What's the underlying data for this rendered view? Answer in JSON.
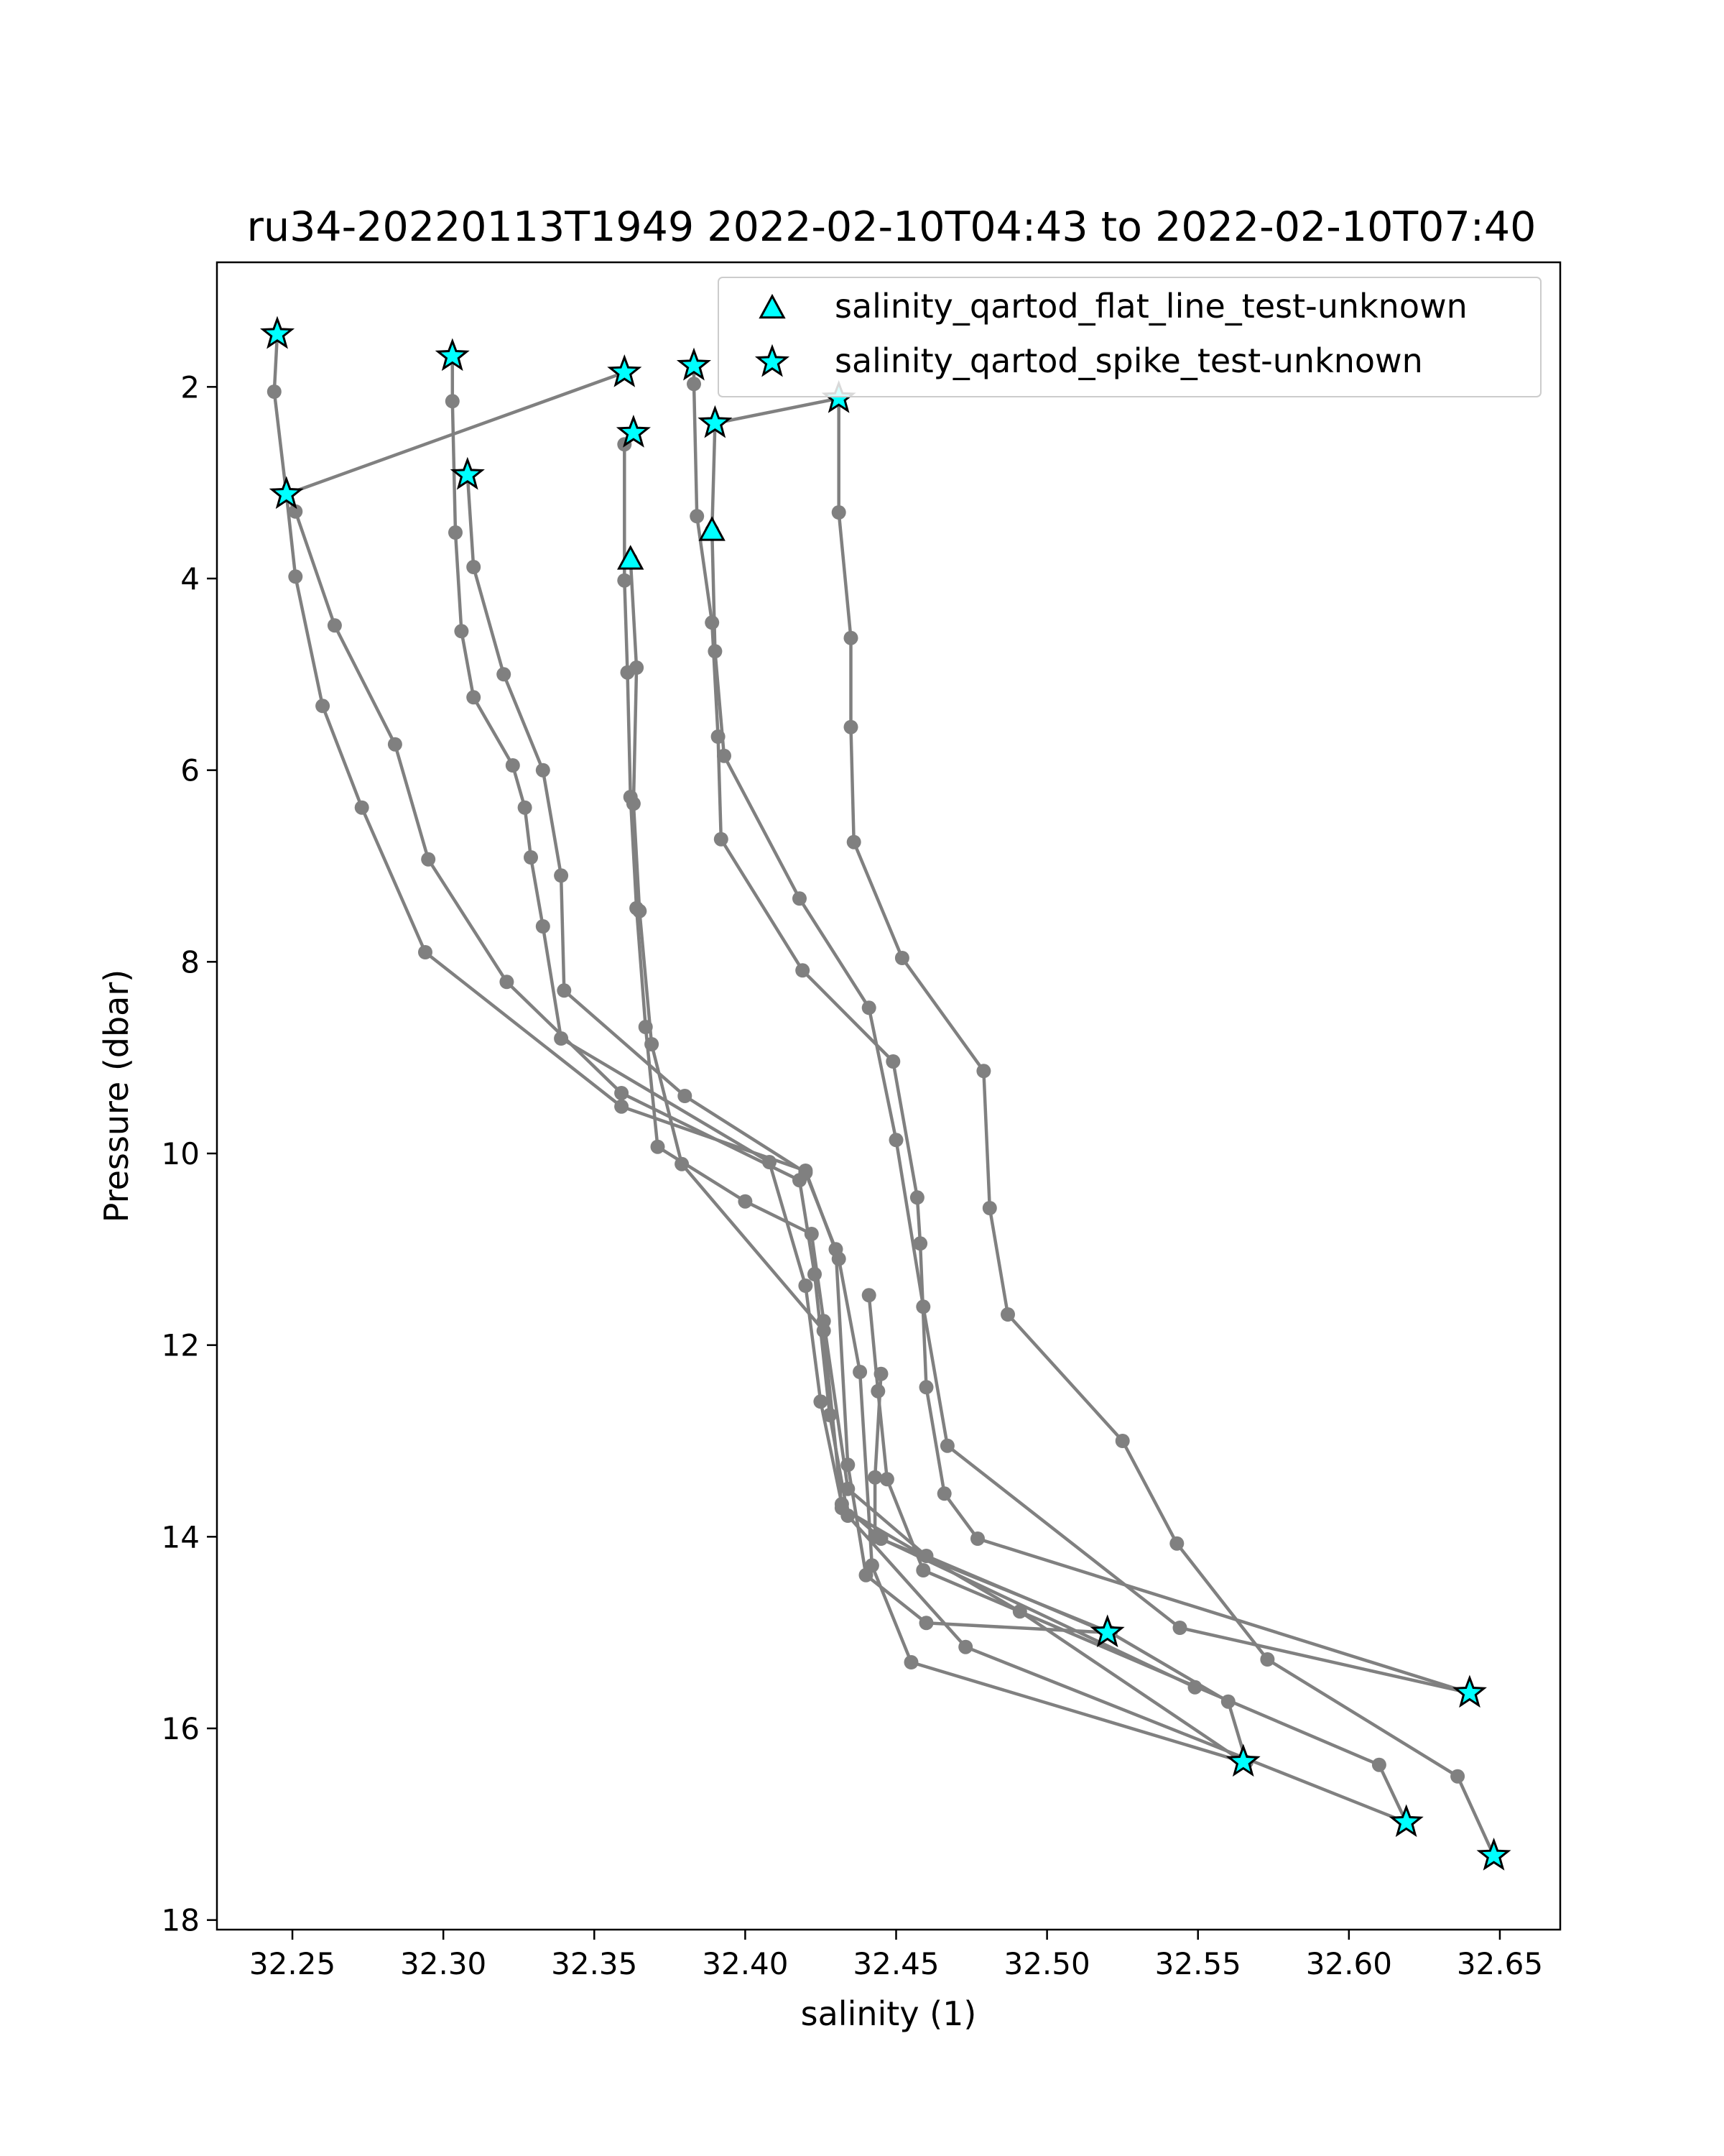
{
  "chart_data": {
    "type": "scatter",
    "title": "ru34-20220113T1949 2022-02-10T04:43 to 2022-02-10T07:40",
    "xlabel": "salinity (1)",
    "ylabel": "Pressure (dbar)",
    "xlim": [
      32.225,
      32.67
    ],
    "ylim": [
      18.1,
      0.7
    ],
    "y_inverted": true,
    "grid": false,
    "legend_position": "top-right",
    "x_ticks": [
      {
        "value": 32.25,
        "label": "32.25"
      },
      {
        "value": 32.3,
        "label": "32.30"
      },
      {
        "value": 32.35,
        "label": "32.35"
      },
      {
        "value": 32.4,
        "label": "32.40"
      },
      {
        "value": 32.45,
        "label": "32.45"
      },
      {
        "value": 32.5,
        "label": "32.50"
      },
      {
        "value": 32.55,
        "label": "32.55"
      },
      {
        "value": 32.6,
        "label": "32.60"
      },
      {
        "value": 32.65,
        "label": "32.65"
      }
    ],
    "y_ticks": [
      {
        "value": 2,
        "label": "2"
      },
      {
        "value": 4,
        "label": "4"
      },
      {
        "value": 6,
        "label": "6"
      },
      {
        "value": 8,
        "label": "8"
      },
      {
        "value": 10,
        "label": "10"
      },
      {
        "value": 12,
        "label": "12"
      },
      {
        "value": 14,
        "label": "14"
      },
      {
        "value": 16,
        "label": "16"
      },
      {
        "value": 18,
        "label": "18"
      }
    ],
    "profile_color": "#808080",
    "marker_color": "#00ffff",
    "profiles": [
      {
        "points": [
          [
            32.245,
            1.45
          ],
          [
            32.244,
            2.05
          ],
          [
            32.248,
            3.12
          ],
          [
            32.251,
            3.98
          ],
          [
            32.26,
            5.33
          ],
          [
            32.273,
            6.39
          ],
          [
            32.294,
            7.9
          ],
          [
            32.359,
            9.51
          ],
          [
            32.42,
            10.18
          ],
          [
            32.431,
            11.1
          ],
          [
            32.438,
            12.28
          ],
          [
            32.442,
            14.3
          ],
          [
            32.455,
            15.31
          ],
          [
            32.565,
            16.35
          ]
        ]
      },
      {
        "points": [
          [
            32.303,
            1.68
          ],
          [
            32.303,
            2.15
          ],
          [
            32.304,
            3.52
          ],
          [
            32.306,
            4.55
          ],
          [
            32.31,
            5.24
          ],
          [
            32.323,
            5.95
          ],
          [
            32.327,
            6.39
          ],
          [
            32.329,
            6.91
          ],
          [
            32.333,
            7.63
          ],
          [
            32.339,
            8.8
          ],
          [
            32.408,
            10.09
          ],
          [
            32.42,
            11.38
          ],
          [
            32.425,
            12.59
          ],
          [
            32.432,
            13.66
          ],
          [
            32.445,
            14.02
          ],
          [
            32.549,
            15.57
          ]
        ]
      },
      {
        "points": [
          [
            32.36,
            1.85
          ],
          [
            32.248,
            3.12
          ],
          [
            32.251,
            3.3
          ],
          [
            32.264,
            4.49
          ],
          [
            32.284,
            5.73
          ],
          [
            32.295,
            6.93
          ],
          [
            32.321,
            8.21
          ],
          [
            32.359,
            9.37
          ],
          [
            32.418,
            10.28
          ],
          [
            32.423,
            11.26
          ],
          [
            32.428,
            12.73
          ],
          [
            32.434,
            13.78
          ],
          [
            32.473,
            15.15
          ],
          [
            32.619,
            16.98
          ]
        ]
      },
      {
        "points": [
          [
            32.308,
            2.92
          ],
          [
            32.31,
            3.88
          ],
          [
            32.32,
            5.0
          ],
          [
            32.333,
            6.0
          ],
          [
            32.339,
            7.1
          ],
          [
            32.34,
            8.3
          ],
          [
            32.38,
            9.4
          ],
          [
            32.42,
            10.2
          ],
          [
            32.43,
            11.0
          ],
          [
            32.434,
            13.25
          ],
          [
            32.44,
            14.4
          ],
          [
            32.46,
            14.9
          ],
          [
            32.52,
            15.0
          ]
        ]
      },
      {
        "points": [
          [
            32.363,
            2.48
          ],
          [
            32.36,
            2.6
          ],
          [
            32.36,
            4.02
          ],
          [
            32.361,
            4.98
          ],
          [
            32.362,
            6.28
          ],
          [
            32.364,
            7.44
          ],
          [
            32.367,
            8.68
          ],
          [
            32.371,
            9.93
          ],
          [
            32.4,
            10.5
          ],
          [
            32.422,
            10.84
          ],
          [
            32.426,
            11.75
          ],
          [
            32.434,
            13.5
          ],
          [
            32.46,
            14.2
          ],
          [
            32.52,
            15.0
          ]
        ]
      },
      {
        "points": [
          [
            32.362,
            3.8
          ],
          [
            32.364,
            4.93
          ],
          [
            32.363,
            6.35
          ],
          [
            32.365,
            7.47
          ],
          [
            32.369,
            8.86
          ],
          [
            32.379,
            10.11
          ],
          [
            32.426,
            11.85
          ],
          [
            32.432,
            13.7
          ],
          [
            32.491,
            14.78
          ],
          [
            32.565,
            16.35
          ]
        ]
      },
      {
        "points": [
          [
            32.383,
            1.78
          ],
          [
            32.383,
            1.97
          ],
          [
            32.384,
            3.35
          ],
          [
            32.389,
            4.46
          ],
          [
            32.391,
            5.65
          ],
          [
            32.392,
            6.72
          ],
          [
            32.419,
            8.09
          ],
          [
            32.449,
            9.04
          ],
          [
            32.457,
            10.46
          ],
          [
            32.458,
            10.94
          ],
          [
            32.46,
            12.44
          ],
          [
            32.466,
            13.55
          ],
          [
            32.477,
            14.02
          ],
          [
            32.64,
            15.63
          ]
        ]
      },
      {
        "points": [
          [
            32.39,
            2.38
          ],
          [
            32.389,
            3.5
          ],
          [
            32.39,
            4.76
          ],
          [
            32.393,
            5.85
          ],
          [
            32.418,
            7.34
          ],
          [
            32.441,
            8.48
          ],
          [
            32.45,
            9.86
          ],
          [
            32.459,
            11.6
          ],
          [
            32.467,
            13.05
          ],
          [
            32.544,
            14.95
          ],
          [
            32.64,
            15.63
          ]
        ]
      },
      {
        "points": [
          [
            32.39,
            2.38
          ],
          [
            32.431,
            2.12
          ],
          [
            32.431,
            3.31
          ],
          [
            32.435,
            4.62
          ],
          [
            32.435,
            5.55
          ],
          [
            32.436,
            6.75
          ],
          [
            32.452,
            7.96
          ],
          [
            32.479,
            9.14
          ],
          [
            32.481,
            10.57
          ],
          [
            32.487,
            11.68
          ],
          [
            32.525,
            13.0
          ],
          [
            32.543,
            14.07
          ],
          [
            32.573,
            15.28
          ],
          [
            32.636,
            16.5
          ],
          [
            32.648,
            17.33
          ]
        ]
      },
      {
        "points": [
          [
            32.445,
            12.3
          ],
          [
            32.443,
            13.38
          ],
          [
            32.443,
            14.0
          ],
          [
            32.521,
            15.0
          ],
          [
            32.56,
            15.72
          ],
          [
            32.566,
            16.35
          ]
        ]
      },
      {
        "points": [
          [
            32.441,
            11.48
          ],
          [
            32.444,
            12.48
          ],
          [
            32.447,
            13.4
          ],
          [
            32.459,
            14.35
          ],
          [
            32.61,
            16.38
          ],
          [
            32.619,
            16.98
          ]
        ]
      }
    ],
    "flat_line_flags": [
      [
        32.389,
        3.5
      ],
      [
        32.362,
        3.8
      ]
    ],
    "spike_flags": [
      [
        32.245,
        1.45
      ],
      [
        32.303,
        1.68
      ],
      [
        32.36,
        1.85
      ],
      [
        32.383,
        1.78
      ],
      [
        32.431,
        2.12
      ],
      [
        32.39,
        2.38
      ],
      [
        32.363,
        2.48
      ],
      [
        32.308,
        2.92
      ],
      [
        32.248,
        3.12
      ],
      [
        32.52,
        15.0
      ],
      [
        32.64,
        15.63
      ],
      [
        32.565,
        16.35
      ],
      [
        32.619,
        16.98
      ],
      [
        32.648,
        17.33
      ]
    ],
    "legend": [
      {
        "label": "salinity_qartod_flat_line_test-unknown",
        "marker": "triangle"
      },
      {
        "label": "salinity_qartod_spike_test-unknown",
        "marker": "star"
      }
    ]
  }
}
